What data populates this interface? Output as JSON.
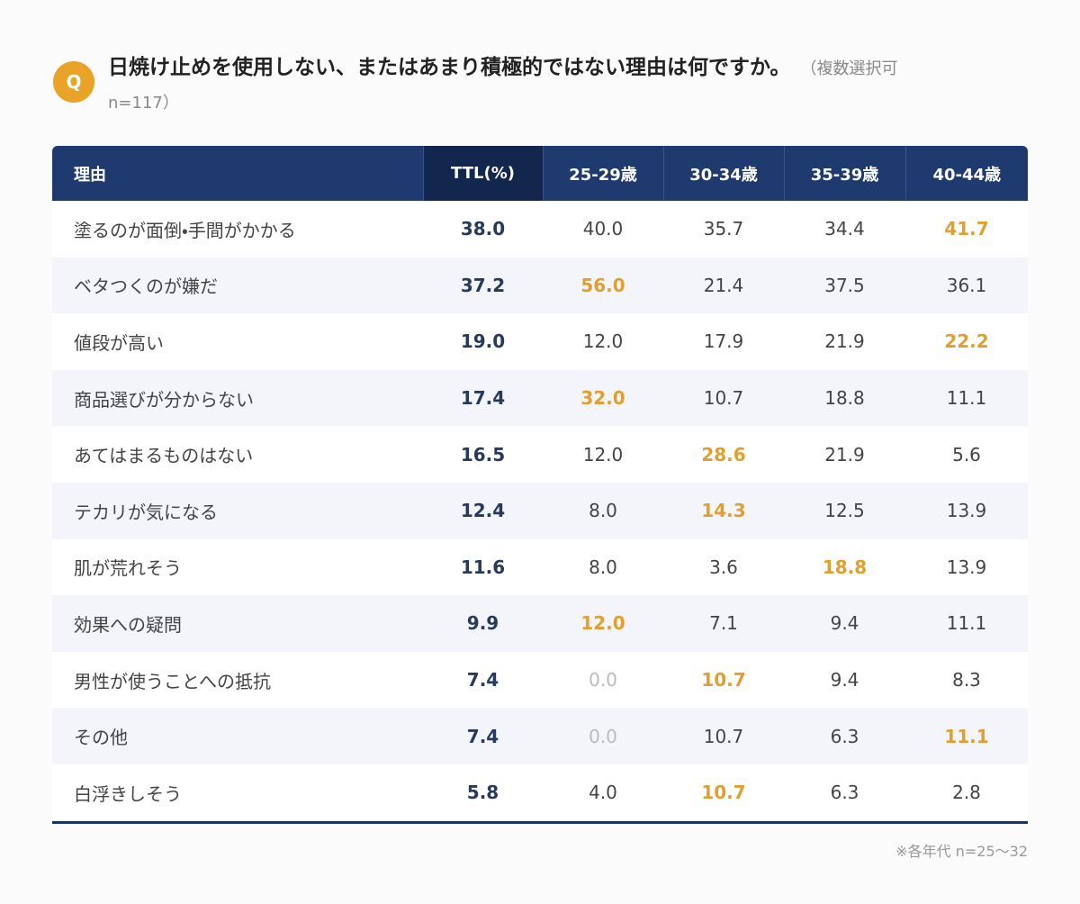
{
  "header": {
    "icon": "Q",
    "title": "日焼け止めを使用しない、またはあまり積極的ではない理由は何ですか。",
    "note": "（複数選択可 n=117）"
  },
  "table": {
    "columns": [
      "理由",
      "TTL(%)",
      "25-29歳",
      "30-34歳",
      "35-39歳",
      "40-44歳"
    ],
    "rows": [
      [
        "塗るのが面倒・手間がかかる",
        "38.0",
        "40.0",
        "35.7",
        "34.4",
        "41.7"
      ],
      [
        "ベタつくのが嫌だ",
        "37.2",
        "56.0",
        "21.4",
        "37.5",
        "36.1"
      ],
      [
        "値段が高い",
        "19.0",
        "12.0",
        "17.9",
        "21.9",
        "22.2"
      ],
      [
        "商品選びが分からない",
        "17.4",
        "32.0",
        "10.7",
        "18.8",
        "11.1"
      ],
      [
        "あてはまるものはない",
        "16.5",
        "12.0",
        "28.6",
        "21.9",
        "5.6"
      ],
      [
        "テカリが気になる",
        "12.4",
        "8.0",
        "14.3",
        "12.5",
        "13.9"
      ],
      [
        "肌が荒れそう",
        "11.6",
        "8.0",
        "3.6",
        "18.8",
        "13.9"
      ],
      [
        "効果への疑問",
        "9.9",
        "12.0",
        "7.1",
        "9.4",
        "11.1"
      ],
      [
        "男性が使うことへの抵抗",
        "7.4",
        "0.0",
        "10.7",
        "9.4",
        "8.3"
      ],
      [
        "その他",
        "7.4",
        "0.0",
        "10.7",
        "6.3",
        "11.1"
      ],
      [
        "白浮きしそう",
        "5.8",
        "4.0",
        "10.7",
        "6.3",
        "2.8"
      ]
    ]
  },
  "footnote": "※各年代 n=25〜32"
}
